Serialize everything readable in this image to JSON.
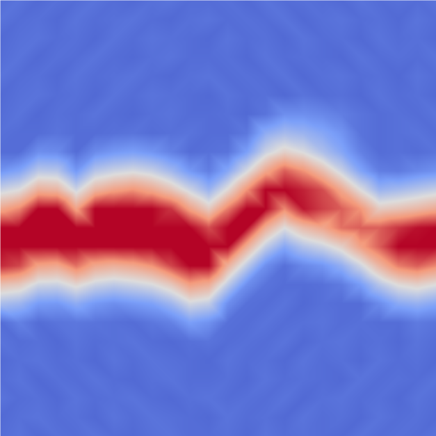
{
  "chart_data": {
    "type": "heatmap",
    "tick_labels": false,
    "colors": [
      "#3b4cc0",
      "#7b9ff9",
      "#dddcdc",
      "#f49a7b",
      "#b40426"
    ],
    "zlim": [
      0,
      1
    ],
    "cells": [
      [
        0.1,
        0.12,
        0.09,
        0.11,
        0.1,
        0.12,
        0.1,
        0.09,
        0.11,
        0.12,
        0.1,
        0.1,
        0.11,
        0.09,
        0.12,
        0.1,
        0.11,
        0.1,
        0.09,
        0.12,
        0.1,
        0.11,
        0.1,
        0.12
      ],
      [
        0.12,
        0.1,
        0.11,
        0.09,
        0.12,
        0.1,
        0.11,
        0.12,
        0.1,
        0.09,
        0.11,
        0.12,
        0.1,
        0.11,
        0.1,
        0.12,
        0.09,
        0.11,
        0.12,
        0.1,
        0.11,
        0.09,
        0.12,
        0.1
      ],
      [
        0.09,
        0.11,
        0.12,
        0.1,
        0.11,
        0.09,
        0.12,
        0.1,
        0.12,
        0.11,
        0.1,
        0.09,
        0.12,
        0.1,
        0.11,
        0.09,
        0.12,
        0.1,
        0.11,
        0.09,
        0.12,
        0.1,
        0.11,
        0.09
      ],
      [
        0.1,
        0.12,
        0.09,
        0.11,
        0.1,
        0.12,
        0.1,
        0.09,
        0.11,
        0.12,
        0.1,
        0.1,
        0.11,
        0.09,
        0.12,
        0.1,
        0.11,
        0.1,
        0.09,
        0.12,
        0.1,
        0.11,
        0.1,
        0.12
      ],
      [
        0.12,
        0.1,
        0.11,
        0.09,
        0.12,
        0.1,
        0.11,
        0.12,
        0.1,
        0.09,
        0.11,
        0.12,
        0.1,
        0.11,
        0.1,
        0.12,
        0.09,
        0.11,
        0.12,
        0.1,
        0.11,
        0.09,
        0.12,
        0.1
      ],
      [
        0.09,
        0.11,
        0.12,
        0.1,
        0.11,
        0.09,
        0.12,
        0.1,
        0.12,
        0.11,
        0.1,
        0.09,
        0.12,
        0.1,
        0.11,
        0.09,
        0.12,
        0.1,
        0.11,
        0.09,
        0.12,
        0.1,
        0.11,
        0.09
      ],
      [
        0.1,
        0.12,
        0.09,
        0.11,
        0.1,
        0.12,
        0.1,
        0.09,
        0.11,
        0.12,
        0.1,
        0.1,
        0.11,
        0.09,
        0.12,
        0.2,
        0.2,
        0.18,
        0.15,
        0.12,
        0.1,
        0.11,
        0.1,
        0.12
      ],
      [
        0.11,
        0.1,
        0.1,
        0.12,
        0.1,
        0.1,
        0.11,
        0.12,
        0.1,
        0.11,
        0.12,
        0.1,
        0.1,
        0.13,
        0.3,
        0.36,
        0.33,
        0.28,
        0.22,
        0.12,
        0.1,
        0.11,
        0.12,
        0.1
      ],
      [
        0.1,
        0.1,
        0.2,
        0.19,
        0.1,
        0.19,
        0.23,
        0.25,
        0.22,
        0.16,
        0.1,
        0.11,
        0.12,
        0.25,
        0.45,
        0.55,
        0.49,
        0.38,
        0.28,
        0.16,
        0.1,
        0.11,
        0.1,
        0.12
      ],
      [
        0.22,
        0.27,
        0.41,
        0.4,
        0.23,
        0.4,
        0.45,
        0.48,
        0.44,
        0.35,
        0.23,
        0.15,
        0.28,
        0.48,
        0.7,
        0.85,
        0.76,
        0.62,
        0.45,
        0.27,
        0.15,
        0.14,
        0.18,
        0.21
      ],
      [
        0.45,
        0.5,
        0.67,
        0.65,
        0.46,
        0.65,
        0.72,
        0.76,
        0.7,
        0.6,
        0.46,
        0.33,
        0.52,
        0.76,
        1,
        1,
        0.95,
        0.88,
        0.7,
        0.5,
        0.33,
        0.36,
        0.4,
        0.44
      ],
      [
        0.7,
        0.78,
        1,
        1,
        0.72,
        1,
        1,
        1,
        1,
        0.92,
        0.72,
        0.57,
        0.8,
        1,
        1,
        0.78,
        0.97,
        0.9,
        0.85,
        0.76,
        0.57,
        0.6,
        0.64,
        0.69
      ],
      [
        1,
        1,
        1,
        1,
        1,
        1,
        1,
        1,
        1,
        1,
        1,
        0.88,
        1,
        1,
        0.68,
        0.5,
        0.63,
        0.7,
        0.82,
        0.85,
        0.85,
        0.92,
        0.98,
        1
      ],
      [
        1,
        1,
        1,
        1,
        1,
        1,
        1,
        1,
        1,
        1,
        1,
        1,
        1,
        0.68,
        0.43,
        0.28,
        0.39,
        0.45,
        0.55,
        0.72,
        0.85,
        1,
        1,
        1
      ],
      [
        0.94,
        0.89,
        0.72,
        0.7,
        0.82,
        0.7,
        0.67,
        0.7,
        0.76,
        0.89,
        1,
        1,
        0.67,
        0.42,
        0.2,
        0.11,
        0.18,
        0.22,
        0.31,
        0.46,
        0.65,
        0.8,
        0.85,
        0.78
      ],
      [
        0.61,
        0.58,
        0.46,
        0.45,
        0.53,
        0.45,
        0.42,
        0.45,
        0.49,
        0.58,
        0.73,
        0.68,
        0.42,
        0.2,
        0.12,
        0.1,
        0.1,
        0.11,
        0.14,
        0.24,
        0.4,
        0.51,
        0.55,
        0.5
      ],
      [
        0.37,
        0.34,
        0.24,
        0.23,
        0.3,
        0.23,
        0.2,
        0.23,
        0.26,
        0.34,
        0.47,
        0.43,
        0.2,
        0.11,
        0.1,
        0.12,
        0.09,
        0.11,
        0.1,
        0.1,
        0.19,
        0.29,
        0.32,
        0.28
      ],
      [
        0.1,
        0.16,
        0.1,
        0.12,
        0.13,
        0.12,
        0.11,
        0.1,
        0.13,
        0.16,
        0.25,
        0.21,
        0.11,
        0.1,
        0.12,
        0.1,
        0.11,
        0.12,
        0.1,
        0.11,
        0.1,
        0.1,
        0.14,
        0.12
      ],
      [
        0.12,
        0.1,
        0.11,
        0.09,
        0.12,
        0.1,
        0.11,
        0.12,
        0.1,
        0.09,
        0.11,
        0.12,
        0.1,
        0.11,
        0.1,
        0.12,
        0.09,
        0.11,
        0.12,
        0.1,
        0.11,
        0.09,
        0.12,
        0.1
      ],
      [
        0.09,
        0.11,
        0.12,
        0.1,
        0.11,
        0.09,
        0.12,
        0.1,
        0.12,
        0.11,
        0.1,
        0.09,
        0.12,
        0.1,
        0.11,
        0.09,
        0.12,
        0.1,
        0.11,
        0.09,
        0.12,
        0.1,
        0.11,
        0.09
      ],
      [
        0.1,
        0.12,
        0.09,
        0.11,
        0.1,
        0.12,
        0.1,
        0.09,
        0.11,
        0.12,
        0.1,
        0.1,
        0.11,
        0.09,
        0.12,
        0.1,
        0.11,
        0.1,
        0.09,
        0.12,
        0.1,
        0.11,
        0.1,
        0.12
      ],
      [
        0.12,
        0.1,
        0.11,
        0.09,
        0.12,
        0.1,
        0.11,
        0.12,
        0.1,
        0.09,
        0.11,
        0.12,
        0.1,
        0.11,
        0.1,
        0.12,
        0.09,
        0.11,
        0.12,
        0.1,
        0.11,
        0.09,
        0.12,
        0.1
      ],
      [
        0.09,
        0.11,
        0.12,
        0.1,
        0.11,
        0.09,
        0.12,
        0.1,
        0.12,
        0.11,
        0.1,
        0.09,
        0.12,
        0.1,
        0.11,
        0.09,
        0.12,
        0.1,
        0.11,
        0.09,
        0.12,
        0.1,
        0.11,
        0.09
      ],
      [
        0.1,
        0.12,
        0.09,
        0.11,
        0.1,
        0.12,
        0.1,
        0.09,
        0.11,
        0.12,
        0.1,
        0.1,
        0.11,
        0.09,
        0.12,
        0.1,
        0.11,
        0.1,
        0.09,
        0.12,
        0.1,
        0.11,
        0.1,
        0.12
      ]
    ]
  }
}
